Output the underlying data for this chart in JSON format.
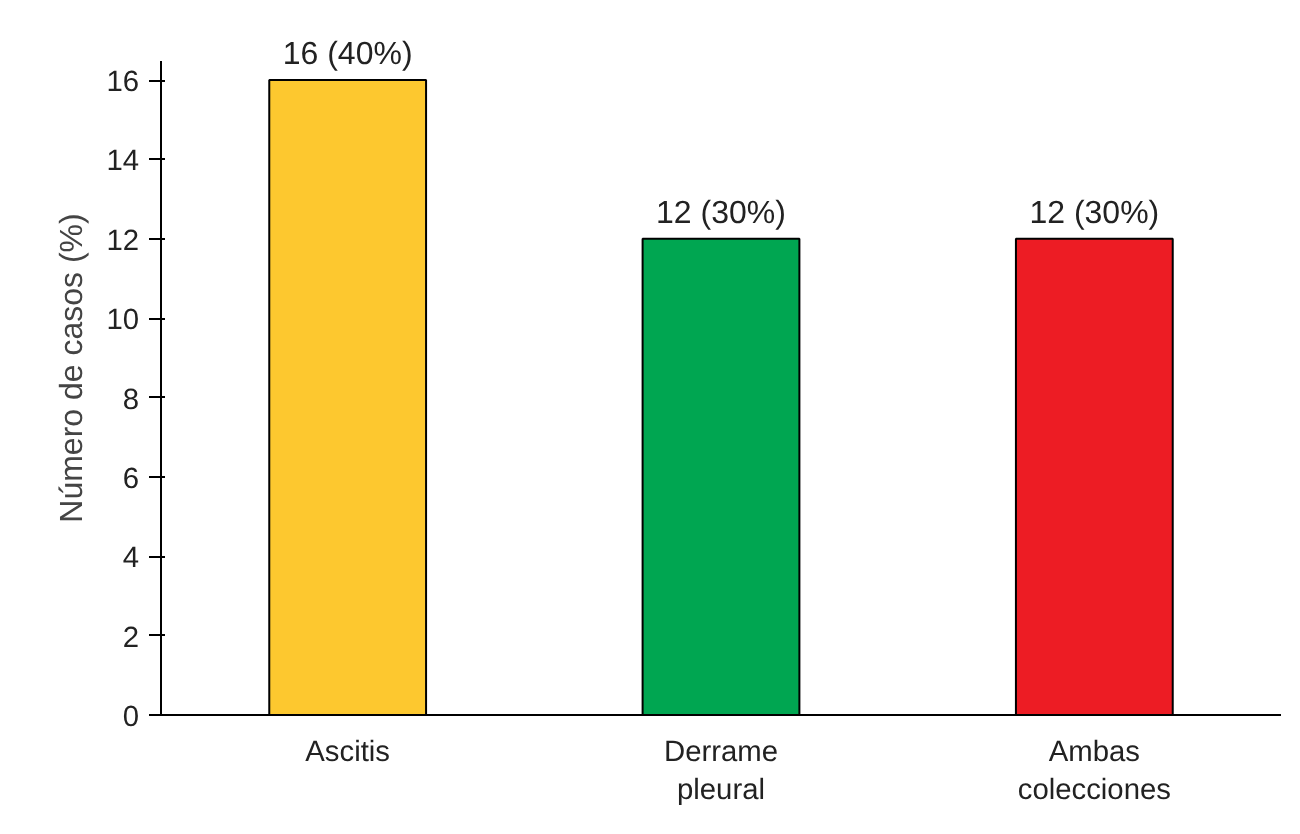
{
  "chart_data": {
    "type": "bar",
    "ylabel": "Número de casos (%)",
    "categories": [
      "Ascitis",
      "Derrame\npleural",
      "Ambas\ncolecciones"
    ],
    "values": [
      16,
      12,
      12
    ],
    "colors": [
      "#fdc82f",
      "#00a651",
      "#ed1c24"
    ],
    "value_labels": [
      "16 (40%)",
      "12 (30%)",
      "12 (30%)"
    ],
    "ylim": [
      0,
      16.5
    ],
    "yticks": [
      0,
      2,
      4,
      6,
      8,
      10,
      12,
      14,
      16
    ],
    "grid": false
  }
}
